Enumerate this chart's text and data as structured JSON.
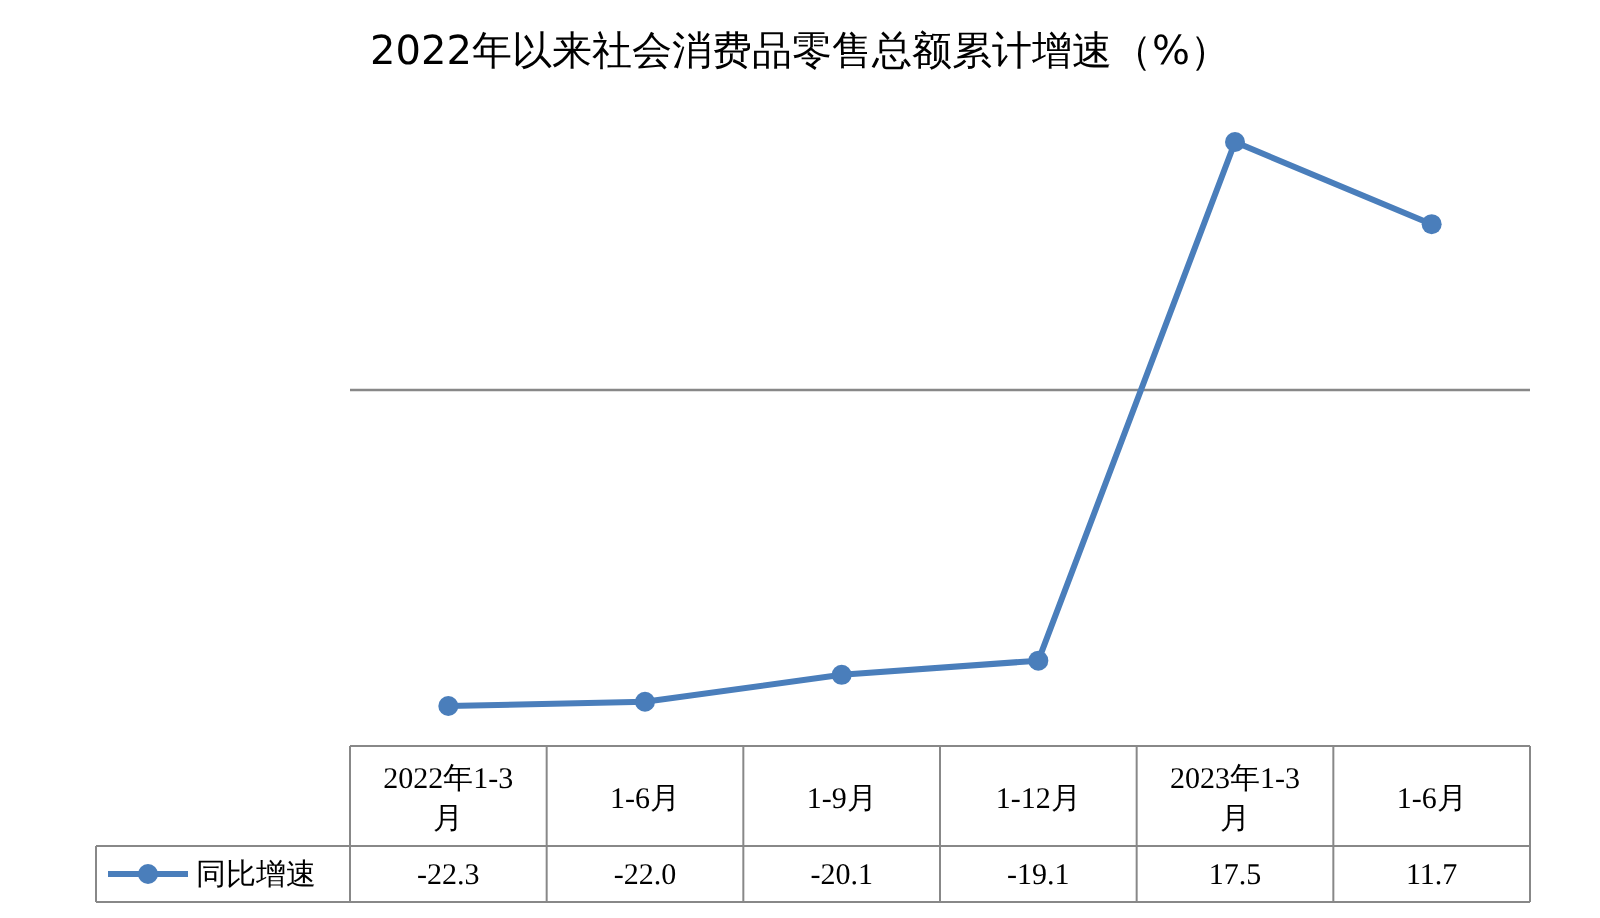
{
  "chart_data": {
    "type": "line",
    "title": "2022年以来社会消费品零售总额累计增速（%）",
    "categories": [
      "2022年1-3月",
      "1-6月",
      "1-9月",
      "1-12月",
      "2023年1-3月",
      "1-6月"
    ],
    "series": [
      {
        "name": "同比增速",
        "color": "#4a7ebb",
        "values": [
          -22.3,
          -22.0,
          -20.1,
          -19.1,
          17.5,
          11.7
        ],
        "value_labels": [
          "-22.3",
          "-22.0",
          "-20.1",
          "-19.1",
          "17.5",
          "11.7"
        ]
      }
    ],
    "marker": "circle",
    "legend": "bottom"
  }
}
